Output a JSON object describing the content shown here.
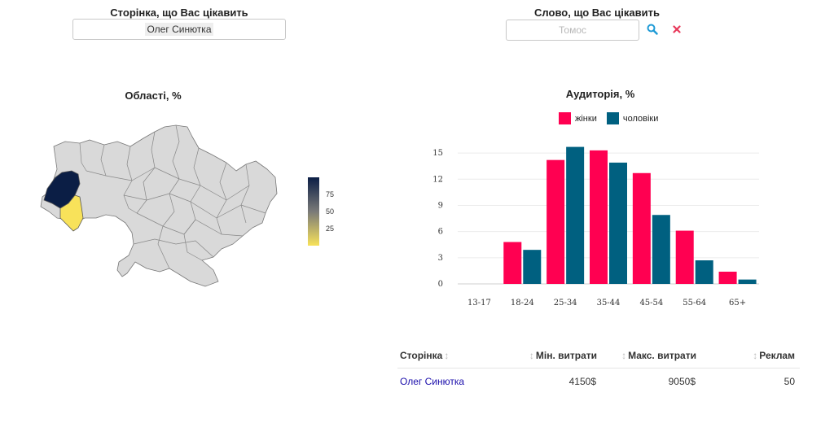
{
  "filters": {
    "page_label": "Сторінка, що Вас цікавить",
    "page_value": "Олег Синютка",
    "word_label": "Слово, що Вас цікавить",
    "word_placeholder": "Томос",
    "search_icon": "search-icon",
    "clear_icon": "close-icon"
  },
  "map": {
    "title": "Області, %",
    "colorbar_ticks": [
      "75",
      "50",
      "25"
    ],
    "colorbar_range": [
      0,
      100
    ],
    "colors": {
      "high": "#0b1e45",
      "mid": "#7a7a78",
      "low": "#f8e25a",
      "default": "#d9d9d9"
    },
    "regions": [
      {
        "name": "Lviv",
        "value": 95
      },
      {
        "name": "Ivano-Frankivsk",
        "value": 5
      }
    ]
  },
  "chart_data": {
    "type": "bar",
    "title": "Аудиторія, %",
    "categories": [
      "13-17",
      "18-24",
      "25-34",
      "35-44",
      "45-54",
      "55-64",
      "65+"
    ],
    "series": [
      {
        "name": "жінки",
        "color": "#ff0051",
        "values": [
          0,
          4.8,
          14.2,
          15.3,
          12.7,
          6.1,
          1.4
        ]
      },
      {
        "name": "чоловіки",
        "color": "#006080",
        "values": [
          0,
          3.9,
          15.7,
          13.9,
          7.9,
          2.7,
          0.5
        ]
      }
    ],
    "yticks": [
      0,
      3,
      6,
      9,
      12,
      15
    ],
    "ylim": [
      0,
      16.5
    ],
    "legend_position": "top-center",
    "grid": true
  },
  "table": {
    "columns": [
      "Сторінка",
      "Мін. витрати",
      "Макс. витрати",
      "Реклам"
    ],
    "rows": [
      {
        "page": "Олег Синютка",
        "min": "4150$",
        "max": "9050$",
        "ads": "50"
      }
    ]
  }
}
